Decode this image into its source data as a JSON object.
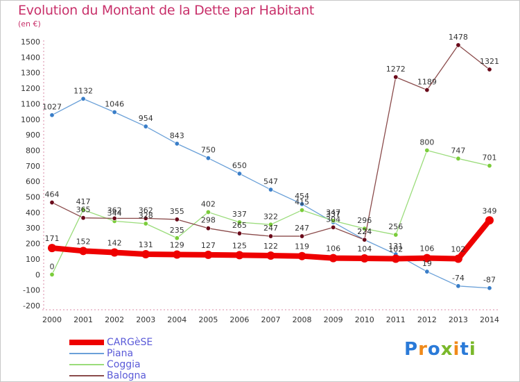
{
  "header": {
    "title": "Evolution du Montant de la Dette par Habitant",
    "unit": "(en €)"
  },
  "logo": {
    "text": "Proxiti",
    "colors": [
      "#2a7ad8",
      "#f08a1a",
      "#2a7ad8",
      "#7ab82a",
      "#f08a1a",
      "#2a7ad8",
      "#7ab82a"
    ]
  },
  "chart_data": {
    "type": "line",
    "title": "Evolution du Montant de la Dette par Habitant",
    "ylabel": "(en €)",
    "xlabel": "",
    "ylim": [
      -200,
      1500
    ],
    "yticks": [
      -200,
      -100,
      0,
      100,
      200,
      300,
      400,
      500,
      600,
      700,
      800,
      900,
      1000,
      1100,
      1200,
      1300,
      1400,
      1500
    ],
    "grid": false,
    "legend_position": "bottom-left",
    "categories": [
      "2000",
      "2001",
      "2002",
      "2003",
      "2004",
      "2005",
      "2006",
      "2007",
      "2008",
      "2009",
      "2010",
      "2011",
      "2012",
      "2013",
      "2014"
    ],
    "series": [
      {
        "name": "CARGèSE",
        "color": "#ee0000",
        "marker": "#ee0000",
        "width": 8,
        "values": [
          171,
          152,
          142,
          131,
          129,
          127,
          125,
          122,
          119,
          106,
          104,
          102,
          106,
          102,
          349
        ]
      },
      {
        "name": "Piana",
        "color": "#6aa0d8",
        "marker": "#3a7ec8",
        "width": 1.3,
        "values": [
          1027,
          1132,
          1046,
          954,
          843,
          750,
          650,
          547,
          454,
          337,
          224,
          131,
          19,
          -74,
          -87
        ]
      },
      {
        "name": "Coggia",
        "color": "#9adc7a",
        "marker": "#7acc3a",
        "width": 1.3,
        "values": [
          0,
          417,
          344,
          328,
          235,
          402,
          337,
          322,
          415,
          347,
          296,
          256,
          800,
          747,
          701
        ]
      },
      {
        "name": "Balogna",
        "color": "#8a4a4a",
        "marker": "#6a0a1a",
        "width": 1.3,
        "values": [
          464,
          365,
          362,
          362,
          355,
          298,
          265,
          247,
          247,
          304,
          224,
          1272,
          1189,
          1478,
          1321
        ]
      }
    ]
  }
}
